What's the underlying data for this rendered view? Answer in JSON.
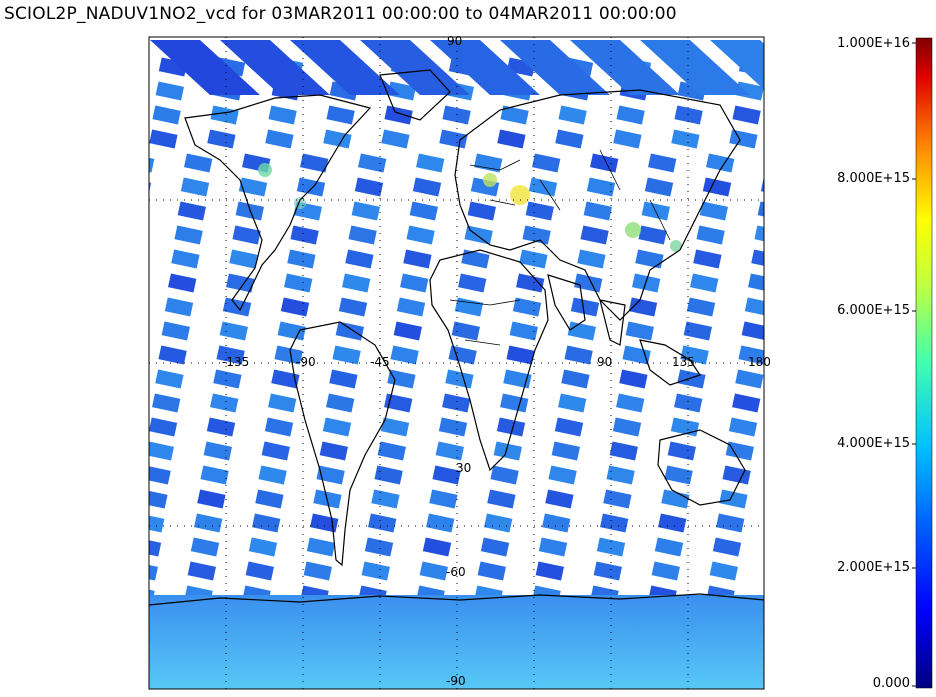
{
  "title": "SCIOL2P_NADUV1NO2_vcd for 03MAR2011 00:00:00 to 04MAR2011 00:00:00",
  "map": {
    "projection": "equirectangular",
    "background": "#ffffff",
    "swath_color_range": [
      "#1c2fd6",
      "#36a7f4"
    ],
    "grid_lines": true,
    "latitude_labels": [
      "90",
      "30",
      "-30",
      "-60",
      "-90"
    ],
    "longitude_labels": [
      "-135",
      "-90",
      "-45",
      "90",
      "135",
      "180"
    ]
  },
  "colorbar": {
    "min": 0,
    "max": 1e+16,
    "ticks": [
      "1.000E+16",
      "8.000E+15",
      "6.000E+15",
      "4.000E+15",
      "2.000E+15",
      "0.000"
    ],
    "colors": [
      "#000080",
      "#0000ff",
      "#0080ff",
      "#00ffff",
      "#80ff80",
      "#ffff00",
      "#ff8000",
      "#ff0000",
      "#800000"
    ]
  },
  "hotspots": [
    {
      "region": "europe",
      "color": "#f2e23a"
    },
    {
      "region": "east-asia",
      "color": "#8fe07a"
    },
    {
      "region": "north-america",
      "color": "#6fd8a8"
    }
  ]
}
